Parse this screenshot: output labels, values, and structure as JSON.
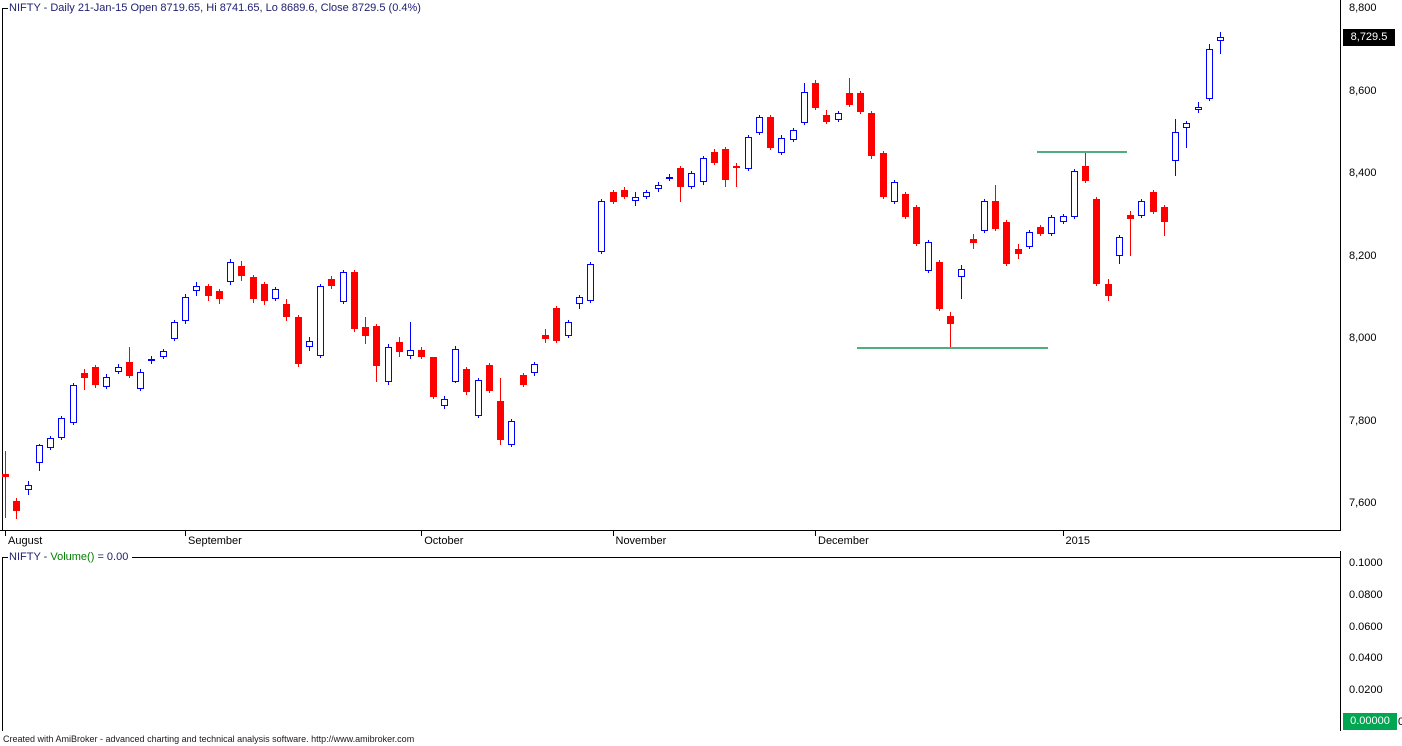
{
  "main_pane": {
    "title": "NIFTY - Daily 21-Jan-15 Open 8719.65, Hi 8741.65, Lo 8689.6, Close 8729.5 (0.4%)",
    "title_color": "#202070",
    "price_label": "8,729.5",
    "price_label_value": 8729.5,
    "y_ticks": [
      {
        "label": "8,800",
        "price": 8800
      },
      {
        "label": "8,600",
        "price": 8600
      },
      {
        "label": "8,400",
        "price": 8400
      },
      {
        "label": "8,200",
        "price": 8200
      },
      {
        "label": "8,000",
        "price": 8000
      },
      {
        "label": "7,800",
        "price": 7800
      },
      {
        "label": "7,600",
        "price": 7600
      }
    ]
  },
  "x_axis": {
    "labels": [
      {
        "text": "August",
        "candle": 0
      },
      {
        "text": "September",
        "candle": 16
      },
      {
        "text": "October",
        "candle": 37
      },
      {
        "text": "November",
        "candle": 54
      },
      {
        "text": "December",
        "candle": 72
      },
      {
        "text": "2015",
        "candle": 94
      }
    ]
  },
  "volume_pane": {
    "title_prefix": "NIFTY - ",
    "title_func": "Volume()",
    "title_suffix": " = 0.00",
    "prefix_color": "#202070",
    "func_color": "#008000",
    "y_ticks": [
      {
        "label": "0.1000",
        "value": 0.1
      },
      {
        "label": "0.0800",
        "value": 0.08
      },
      {
        "label": "0.0600",
        "value": 0.06
      },
      {
        "label": "0.0400",
        "value": 0.04
      },
      {
        "label": "0.0200",
        "value": 0.02
      }
    ],
    "zero_box_label": "0.00000",
    "zero_outside": "0",
    "box_color": "#00A651"
  },
  "footer": {
    "text": "Created with AmiBroker - advanced charting and technical analysis software. http://www.amibroker.com"
  },
  "chart_data": {
    "type": "candlestick",
    "symbol": "NIFTY",
    "interval": "Daily",
    "last_date": "21-Jan-15",
    "ohlc_last": {
      "open": 8719.65,
      "high": 8741.65,
      "low": 8689.6,
      "close": 8729.5,
      "change_pct": "0.4%"
    },
    "y_axis_range": [
      7600,
      8800
    ],
    "x_axis_labels": [
      "August",
      "September",
      "October",
      "November",
      "December",
      "2015"
    ],
    "up_color": "#0000FF",
    "down_color": "#FF0000",
    "sr_color": "#4FAE7F",
    "sr_lines": [
      {
        "price": 7976,
        "from_candle": 76,
        "to_candle": 93
      },
      {
        "price": 8450,
        "from_candle": 92,
        "to_candle": 100
      }
    ],
    "candles": [
      [
        7670,
        7725,
        7563,
        7662
      ],
      [
        7604,
        7612,
        7561,
        7580
      ],
      [
        7631,
        7653,
        7619,
        7643
      ],
      [
        7696,
        7744,
        7677,
        7740
      ],
      [
        7733,
        7762,
        7728,
        7757
      ],
      [
        7757,
        7810,
        7752,
        7805
      ],
      [
        7793,
        7890,
        7788,
        7885
      ],
      [
        7914,
        7925,
        7875,
        7904
      ],
      [
        7930,
        7935,
        7880,
        7885
      ],
      [
        7882,
        7912,
        7877,
        7906
      ],
      [
        7918,
        7936,
        7912,
        7930
      ],
      [
        7942,
        7979,
        7903,
        7909
      ],
      [
        7877,
        7924,
        7871,
        7918
      ],
      [
        7945,
        7957,
        7937,
        7949
      ],
      [
        7954,
        7974,
        7949,
        7969
      ],
      [
        7998,
        8044,
        7992,
        8039
      ],
      [
        8042,
        8106,
        8034,
        8099
      ],
      [
        8113,
        8135,
        8101,
        8125
      ],
      [
        8125,
        8130,
        8089,
        8101
      ],
      [
        8113,
        8118,
        8082,
        8094
      ],
      [
        8135,
        8191,
        8128,
        8184
      ],
      [
        8174,
        8186,
        8138,
        8150
      ],
      [
        8148,
        8153,
        8085,
        8094
      ],
      [
        8131,
        8136,
        8080,
        8090
      ],
      [
        8094,
        8123,
        8089,
        8118
      ],
      [
        8082,
        8094,
        8041,
        8051
      ],
      [
        8051,
        8056,
        7930,
        7938
      ],
      [
        7979,
        8003,
        7969,
        7993
      ],
      [
        7957,
        8130,
        7952,
        8125
      ],
      [
        8143,
        8150,
        8120,
        8125
      ],
      [
        8087,
        8165,
        8082,
        8160
      ],
      [
        8160,
        8165,
        8015,
        8022
      ],
      [
        8027,
        8051,
        7986,
        8005
      ],
      [
        8029,
        8034,
        7894,
        7933
      ],
      [
        7894,
        7986,
        7887,
        7979
      ],
      [
        7991,
        8003,
        7955,
        7967
      ],
      [
        7957,
        8039,
        7950,
        7972
      ],
      [
        7972,
        7977,
        7950,
        7955
      ],
      [
        7955,
        7955,
        7853,
        7858
      ],
      [
        7834,
        7860,
        7829,
        7853
      ],
      [
        7894,
        7981,
        7890,
        7974
      ],
      [
        7926,
        7930,
        7863,
        7870
      ],
      [
        7810,
        7902,
        7805,
        7897
      ],
      [
        7935,
        7940,
        7867,
        7872
      ],
      [
        7848,
        7902,
        7740,
        7752
      ],
      [
        7740,
        7803,
        7735,
        7798
      ],
      [
        7911,
        7916,
        7882,
        7887
      ],
      [
        7914,
        7943,
        7909,
        7938
      ],
      [
        8008,
        8022,
        7989,
        7998
      ],
      [
        8073,
        8078,
        7988,
        7993
      ],
      [
        8005,
        8044,
        8000,
        8039
      ],
      [
        8082,
        8104,
        8070,
        8099
      ],
      [
        8089,
        8184,
        8084,
        8179
      ],
      [
        8208,
        8336,
        8203,
        8331
      ],
      [
        8355,
        8360,
        8324,
        8329
      ],
      [
        8360,
        8365,
        8338,
        8343
      ],
      [
        8331,
        8355,
        8319,
        8343
      ],
      [
        8343,
        8358,
        8338,
        8353
      ],
      [
        8360,
        8377,
        8355,
        8372
      ],
      [
        8387,
        8397,
        8380,
        8391
      ],
      [
        8413,
        8418,
        8329,
        8365
      ],
      [
        8367,
        8406,
        8362,
        8401
      ],
      [
        8377,
        8442,
        8372,
        8437
      ],
      [
        8452,
        8457,
        8420,
        8425
      ],
      [
        8457,
        8462,
        8367,
        8382
      ],
      [
        8418,
        8425,
        8367,
        8413
      ],
      [
        8409,
        8493,
        8404,
        8488
      ],
      [
        8498,
        8541,
        8493,
        8536
      ],
      [
        8536,
        8541,
        8456,
        8461
      ],
      [
        8449,
        8491,
        8444,
        8486
      ],
      [
        8481,
        8510,
        8476,
        8505
      ],
      [
        8522,
        8619,
        8517,
        8597
      ],
      [
        8619,
        8626,
        8553,
        8558
      ],
      [
        8541,
        8553,
        8519,
        8524
      ],
      [
        8529,
        8551,
        8524,
        8546
      ],
      [
        8595,
        8631,
        8561,
        8566
      ],
      [
        8595,
        8600,
        8544,
        8549
      ],
      [
        8546,
        8551,
        8435,
        8440
      ],
      [
        8449,
        8454,
        8338,
        8343
      ],
      [
        8329,
        8382,
        8324,
        8377
      ],
      [
        8348,
        8353,
        8288,
        8293
      ],
      [
        8317,
        8322,
        8223,
        8228
      ],
      [
        8162,
        8237,
        8157,
        8232
      ],
      [
        8184,
        8189,
        8066,
        8071
      ],
      [
        8054,
        8063,
        7979,
        8034
      ],
      [
        8148,
        8177,
        8094,
        8167
      ],
      [
        8240,
        8252,
        8215,
        8230
      ],
      [
        8259,
        8336,
        8254,
        8331
      ],
      [
        8331,
        8372,
        8259,
        8264
      ],
      [
        8281,
        8286,
        8174,
        8179
      ],
      [
        8215,
        8228,
        8191,
        8203
      ],
      [
        8220,
        8262,
        8215,
        8257
      ],
      [
        8269,
        8274,
        8247,
        8252
      ],
      [
        8252,
        8298,
        8247,
        8293
      ],
      [
        8281,
        8300,
        8276,
        8295
      ],
      [
        8293,
        8409,
        8288,
        8404
      ],
      [
        8416,
        8450,
        8375,
        8380
      ],
      [
        8336,
        8341,
        8126,
        8131
      ],
      [
        8131,
        8143,
        8089,
        8101
      ],
      [
        8198,
        8249,
        8179,
        8244
      ],
      [
        8298,
        8307,
        8198,
        8288
      ],
      [
        8295,
        8336,
        8290,
        8331
      ],
      [
        8353,
        8358,
        8300,
        8305
      ],
      [
        8317,
        8322,
        8247,
        8281
      ],
      [
        8428,
        8532,
        8392,
        8500
      ],
      [
        8508,
        8527,
        8461,
        8522
      ],
      [
        8556,
        8571,
        8546,
        8561
      ],
      [
        8580,
        8713,
        8575,
        8701
      ],
      [
        8719.65,
        8741.65,
        8689.6,
        8729.5
      ]
    ]
  }
}
